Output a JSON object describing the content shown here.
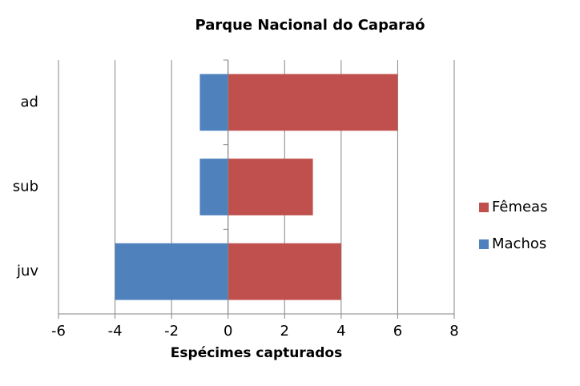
{
  "chart_data": {
    "type": "bar",
    "orientation": "horizontal",
    "stacked": true,
    "title": "Parque Nacional do Caparaó",
    "x_label": "Espécimes capturados",
    "categories": [
      "ad",
      "sub",
      "juv"
    ],
    "series": [
      {
        "name": "Fêmeas",
        "color": "#c0504d",
        "values": [
          6,
          3,
          4
        ]
      },
      {
        "name": "Machos",
        "color": "#4f81bd",
        "values": [
          -1,
          -1,
          -4
        ]
      }
    ],
    "xlim": [
      -6,
      8
    ],
    "xticks": [
      -6,
      -4,
      -2,
      0,
      2,
      4,
      6,
      8
    ],
    "grid": true,
    "legend": "right"
  }
}
